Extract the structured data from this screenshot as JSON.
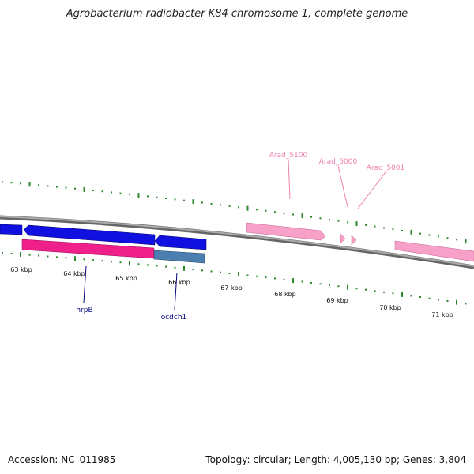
{
  "title": "Agrobacterium radiobacter K84 chromosome 1, complete genome",
  "footer": {
    "accession": "Accession: NC_011985",
    "summary": "Topology: circular; Length: 4,005,130 bp; Genes: 3,804"
  },
  "colors": {
    "backbone": "#888888",
    "tick": "#2a8a2a",
    "blue_gene": "#1010e0",
    "magenta_gene": "#f0208a",
    "steel_gene": "#4a7fb0",
    "pink_gene": "#f7a0c8",
    "pink_label": "#f080b0",
    "navy_label": "#000080"
  },
  "ticks": {
    "labels": [
      "63 kbp",
      "64 kbp",
      "65 kbp",
      "66 kbp",
      "67 kbp",
      "68 kbp",
      "69 kbp",
      "70 kbp",
      "71 kbp"
    ]
  },
  "features": [
    {
      "id": "left-strand-gene-1",
      "strand": "minus",
      "color": "blue_gene"
    },
    {
      "id": "hrpB-gene",
      "strand": "minus",
      "color": "blue_gene"
    },
    {
      "id": "ocdch1-region-top",
      "strand": "minus",
      "color": "blue_gene"
    },
    {
      "id": "magenta-gene",
      "strand": "plus",
      "color": "magenta_gene"
    },
    {
      "id": "ocdch1-gene",
      "strand": "plus",
      "color": "steel_gene"
    },
    {
      "id": "arad-5100-gene",
      "strand": "plus",
      "color": "pink_gene"
    },
    {
      "id": "arad-5000-gene",
      "strand": "plus",
      "color": "pink_gene"
    },
    {
      "id": "arad-5001-gene",
      "strand": "plus",
      "color": "pink_gene"
    },
    {
      "id": "right-pink-gene",
      "strand": "plus",
      "color": "pink_gene"
    }
  ],
  "gene_labels": {
    "arad_5100": "Arad_5100",
    "arad_5000": "Arad_5000",
    "arad_5001": "Arad_5001",
    "hrpB": "hrpB",
    "ocdch1": "ocdch1"
  }
}
